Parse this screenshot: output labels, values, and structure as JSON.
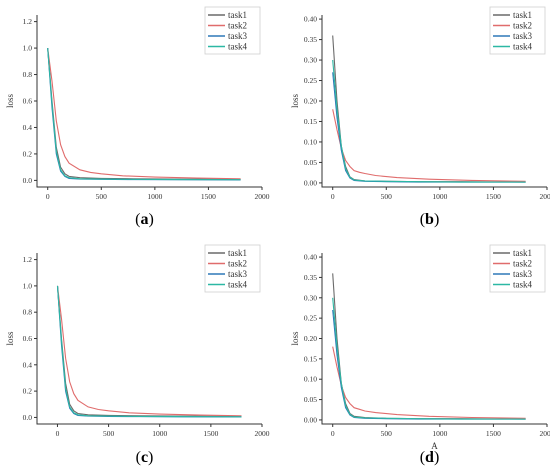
{
  "colors": {
    "task1": "#6a6a6a",
    "task2": "#e06c6c",
    "task3": "#2f78b8",
    "task4": "#2cb8a4"
  },
  "chart_data": [
    {
      "type": "line",
      "panel_label": "a",
      "ylabel": "loss",
      "xlabel": "",
      "xlim": [
        -100,
        2000
      ],
      "ylim": [
        -0.05,
        1.25
      ],
      "xticks": [
        0,
        500,
        1000,
        1500,
        2000
      ],
      "yticks": [
        0.0,
        0.2,
        0.4,
        0.6,
        0.8,
        1.0,
        1.2
      ],
      "tick_decimals": 1,
      "legend_position": "top-right",
      "series": [
        {
          "name": "task1",
          "x": [
            0,
            40,
            80,
            120,
            160,
            200,
            300,
            500,
            800,
            1200,
            1800
          ],
          "values": [
            1.0,
            0.6,
            0.25,
            0.1,
            0.05,
            0.03,
            0.02,
            0.015,
            0.012,
            0.01,
            0.008
          ]
        },
        {
          "name": "task2",
          "x": [
            0,
            40,
            80,
            120,
            160,
            200,
            300,
            400,
            500,
            700,
            1000,
            1400,
            1800
          ],
          "values": [
            1.0,
            0.75,
            0.45,
            0.27,
            0.18,
            0.13,
            0.08,
            0.06,
            0.05,
            0.035,
            0.025,
            0.018,
            0.012
          ]
        },
        {
          "name": "task3",
          "x": [
            0,
            40,
            80,
            120,
            160,
            200,
            300,
            500,
            800,
            1200,
            1800
          ],
          "values": [
            1.0,
            0.55,
            0.2,
            0.07,
            0.03,
            0.015,
            0.01,
            0.008,
            0.006,
            0.005,
            0.004
          ]
        },
        {
          "name": "task4",
          "x": [
            0,
            40,
            80,
            120,
            160,
            200,
            300,
            500,
            800,
            1200,
            1800
          ],
          "values": [
            1.0,
            0.58,
            0.22,
            0.08,
            0.035,
            0.02,
            0.012,
            0.01,
            0.008,
            0.006,
            0.005
          ]
        }
      ]
    },
    {
      "type": "line",
      "panel_label": "b",
      "ylabel": "loss",
      "xlabel": "",
      "xlim": [
        -100,
        2000
      ],
      "ylim": [
        -0.01,
        0.41
      ],
      "xticks": [
        0,
        500,
        1000,
        1500,
        2000
      ],
      "yticks": [
        0.0,
        0.05,
        0.1,
        0.15,
        0.2,
        0.25,
        0.3,
        0.35,
        0.4
      ],
      "tick_decimals": 2,
      "legend_position": "top-right",
      "series": [
        {
          "name": "task1",
          "x": [
            0,
            40,
            80,
            120,
            160,
            200,
            300,
            500,
            800,
            1200,
            1800
          ],
          "values": [
            0.36,
            0.2,
            0.09,
            0.04,
            0.015,
            0.008,
            0.005,
            0.004,
            0.003,
            0.003,
            0.002
          ]
        },
        {
          "name": "task2",
          "x": [
            0,
            40,
            80,
            120,
            160,
            200,
            250,
            300,
            400,
            600,
            900,
            1300,
            1800
          ],
          "values": [
            0.18,
            0.13,
            0.085,
            0.055,
            0.04,
            0.03,
            0.026,
            0.023,
            0.018,
            0.013,
            0.009,
            0.006,
            0.004
          ]
        },
        {
          "name": "task3",
          "x": [
            0,
            40,
            80,
            120,
            160,
            200,
            300,
            500,
            800,
            1200,
            1800
          ],
          "values": [
            0.27,
            0.16,
            0.08,
            0.03,
            0.012,
            0.006,
            0.004,
            0.003,
            0.002,
            0.002,
            0.002
          ]
        },
        {
          "name": "task4",
          "x": [
            0,
            40,
            80,
            120,
            160,
            200,
            300,
            500,
            800,
            1200,
            1800
          ],
          "values": [
            0.3,
            0.18,
            0.09,
            0.035,
            0.014,
            0.007,
            0.005,
            0.004,
            0.003,
            0.002,
            0.002
          ]
        }
      ]
    },
    {
      "type": "line",
      "panel_label": "c",
      "ylabel": "loss",
      "xlabel": "",
      "xlim": [
        -200,
        2000
      ],
      "ylim": [
        -0.05,
        1.25
      ],
      "xticks": [
        0,
        500,
        1000,
        1500,
        2000
      ],
      "yticks": [
        0.0,
        0.2,
        0.4,
        0.6,
        0.8,
        1.0,
        1.2
      ],
      "tick_decimals": 1,
      "legend_position": "top-right",
      "series": [
        {
          "name": "task1",
          "x": [
            0,
            40,
            80,
            120,
            160,
            200,
            300,
            500,
            800,
            1200,
            1800
          ],
          "values": [
            1.0,
            0.6,
            0.26,
            0.1,
            0.05,
            0.03,
            0.02,
            0.015,
            0.012,
            0.01,
            0.008
          ]
        },
        {
          "name": "task2",
          "x": [
            0,
            40,
            80,
            120,
            160,
            200,
            300,
            400,
            500,
            700,
            1000,
            1400,
            1800
          ],
          "values": [
            1.0,
            0.75,
            0.45,
            0.27,
            0.18,
            0.13,
            0.08,
            0.06,
            0.05,
            0.035,
            0.025,
            0.018,
            0.012
          ]
        },
        {
          "name": "task3",
          "x": [
            0,
            40,
            80,
            120,
            160,
            200,
            300,
            500,
            800,
            1200,
            1800
          ],
          "values": [
            1.0,
            0.55,
            0.2,
            0.07,
            0.03,
            0.015,
            0.01,
            0.008,
            0.006,
            0.005,
            0.004
          ]
        },
        {
          "name": "task4",
          "x": [
            0,
            40,
            80,
            120,
            160,
            200,
            300,
            500,
            800,
            1200,
            1800
          ],
          "values": [
            1.0,
            0.58,
            0.22,
            0.08,
            0.035,
            0.02,
            0.012,
            0.01,
            0.008,
            0.006,
            0.005
          ]
        }
      ]
    },
    {
      "type": "line",
      "panel_label": "d",
      "ylabel": "loss",
      "xlabel": "A",
      "xlim": [
        -100,
        2000
      ],
      "ylim": [
        -0.01,
        0.41
      ],
      "xticks": [
        0,
        500,
        1000,
        1500,
        2000
      ],
      "yticks": [
        0.0,
        0.05,
        0.1,
        0.15,
        0.2,
        0.25,
        0.3,
        0.35,
        0.4
      ],
      "tick_decimals": 2,
      "legend_position": "top-right",
      "series": [
        {
          "name": "task1",
          "x": [
            0,
            40,
            80,
            120,
            160,
            200,
            300,
            500,
            800,
            1200,
            1800
          ],
          "values": [
            0.36,
            0.2,
            0.09,
            0.04,
            0.016,
            0.009,
            0.006,
            0.004,
            0.003,
            0.003,
            0.002
          ]
        },
        {
          "name": "task2",
          "x": [
            0,
            40,
            80,
            120,
            160,
            200,
            250,
            300,
            400,
            600,
            900,
            1300,
            1800
          ],
          "values": [
            0.18,
            0.13,
            0.085,
            0.055,
            0.04,
            0.03,
            0.026,
            0.022,
            0.018,
            0.013,
            0.009,
            0.006,
            0.004
          ]
        },
        {
          "name": "task3",
          "x": [
            0,
            40,
            80,
            120,
            160,
            200,
            300,
            500,
            800,
            1200,
            1800
          ],
          "values": [
            0.27,
            0.16,
            0.08,
            0.03,
            0.012,
            0.006,
            0.004,
            0.003,
            0.002,
            0.002,
            0.002
          ]
        },
        {
          "name": "task4",
          "x": [
            0,
            40,
            80,
            120,
            160,
            200,
            300,
            500,
            800,
            1200,
            1800
          ],
          "values": [
            0.3,
            0.18,
            0.09,
            0.035,
            0.014,
            0.007,
            0.005,
            0.004,
            0.003,
            0.002,
            0.002
          ]
        }
      ]
    }
  ]
}
